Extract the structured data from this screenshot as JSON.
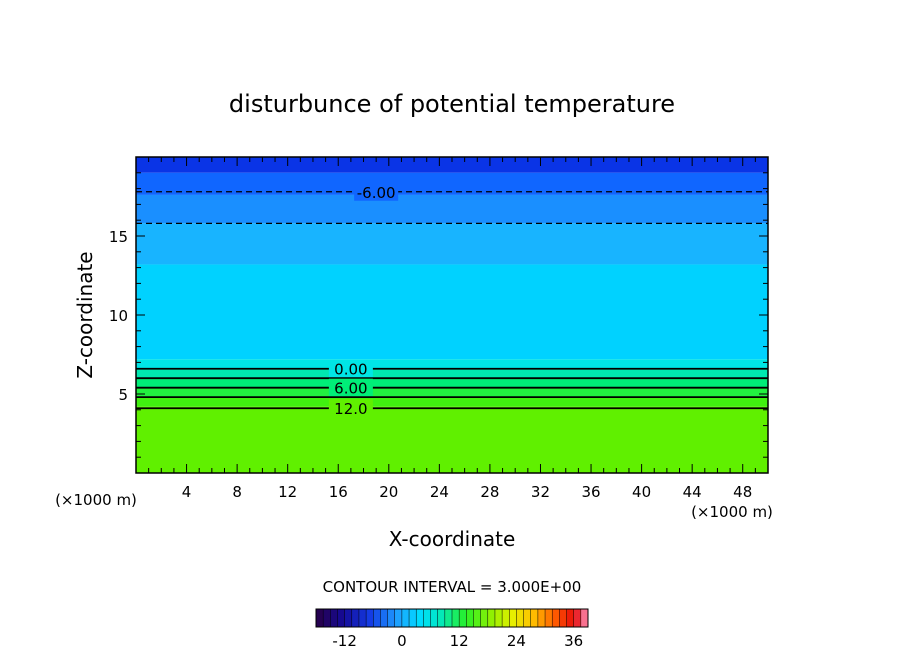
{
  "chart_data": {
    "type": "heatmap",
    "title": "disturbunce of potential temperature",
    "xlabel": "X-coordinate",
    "ylabel": "Z-coordinate",
    "x_unit": "(×1000 m)",
    "y_unit": "(×1000 m)",
    "xlim": [
      0,
      50
    ],
    "ylim": [
      0,
      20
    ],
    "xticks": [
      4,
      8,
      12,
      16,
      20,
      24,
      28,
      32,
      36,
      40,
      44,
      48
    ],
    "yticks": [
      5,
      10,
      15
    ],
    "contour_interval_text": "CONTOUR INTERVAL = 3.000E+00",
    "contour_interval": 3.0,
    "colorbar": {
      "range": [
        -18,
        39
      ],
      "ticks": [
        -12,
        0,
        12,
        24,
        36
      ]
    },
    "layers": [
      {
        "z_bottom": 19.0,
        "z_top": 20.0,
        "value": -15,
        "color": "#0a34e6"
      },
      {
        "z_bottom": 17.6,
        "z_top": 19.0,
        "value": -12,
        "color": "#1066ff"
      },
      {
        "z_bottom": 15.8,
        "z_top": 17.6,
        "value": -9,
        "color": "#1a8fff"
      },
      {
        "z_bottom": 13.2,
        "z_top": 15.8,
        "value": -6,
        "color": "#18b4ff"
      },
      {
        "z_bottom": 7.2,
        "z_top": 13.2,
        "value": -3,
        "color": "#00d2ff"
      },
      {
        "z_bottom": 6.6,
        "z_top": 7.2,
        "value": 0,
        "color": "#00e6e6"
      },
      {
        "z_bottom": 6.0,
        "z_top": 6.6,
        "value": 3,
        "color": "#00e8b0"
      },
      {
        "z_bottom": 5.4,
        "z_top": 6.0,
        "value": 6,
        "color": "#00ee78"
      },
      {
        "z_bottom": 4.8,
        "z_top": 5.4,
        "value": 9,
        "color": "#22f040"
      },
      {
        "z_bottom": 4.2,
        "z_top": 4.8,
        "value": 12,
        "color": "#40f010"
      },
      {
        "z_bottom": 0,
        "z_top": 4.2,
        "value": 15,
        "color": "#60f000"
      }
    ],
    "contours": [
      {
        "level": -6,
        "z": 17.8,
        "style": "dashed",
        "label": "-6.00",
        "label_x": 19.0
      },
      {
        "level": -3,
        "z": 15.8,
        "style": "dashed",
        "label": ""
      },
      {
        "level": 0,
        "z": 6.6,
        "style": "solid",
        "label": "0.00",
        "label_x": 17.0
      },
      {
        "level": 3,
        "z": 6.0,
        "style": "solid",
        "label": ""
      },
      {
        "level": 6,
        "z": 5.4,
        "style": "solid",
        "label": "6.00",
        "label_x": 17.0
      },
      {
        "level": 9,
        "z": 4.8,
        "style": "solid",
        "label": ""
      },
      {
        "level": 12,
        "z": 4.1,
        "style": "solid",
        "label": "12.0",
        "label_x": 17.0
      }
    ]
  }
}
